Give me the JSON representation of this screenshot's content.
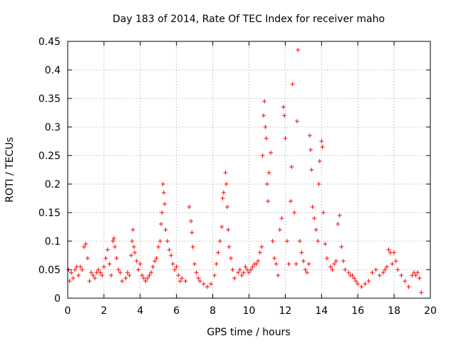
{
  "chart_data": {
    "type": "scatter",
    "title": "Day 183 of 2014, Rate Of TEC Index for receiver maho",
    "xlabel": "GPS time / hours",
    "ylabel": "ROTI / TECUs",
    "xlim": [
      0,
      20
    ],
    "ylim": [
      0,
      0.45
    ],
    "xticks": [
      0,
      2,
      4,
      6,
      8,
      10,
      12,
      14,
      16,
      18,
      20
    ],
    "yticks": [
      0,
      0.05,
      0.1,
      0.15,
      0.2,
      0.25,
      0.3,
      0.35,
      0.4,
      0.45
    ],
    "xtick_labels": [
      "0",
      "2",
      "4",
      "6",
      "8",
      "10",
      "12",
      "14",
      "16",
      "18",
      "20"
    ],
    "ytick_labels": [
      "0",
      "0.05",
      "0.1",
      "0.15",
      "0.2",
      "0.25",
      "0.3",
      "0.35",
      "0.4",
      "0.45"
    ],
    "grid": true,
    "marker": "+",
    "color": "#ff0000",
    "series": [
      {
        "name": "ROTI",
        "points": [
          [
            0.05,
            0.05
          ],
          [
            0.1,
            0.03
          ],
          [
            0.2,
            0.045
          ],
          [
            0.3,
            0.035
          ],
          [
            0.4,
            0.05
          ],
          [
            0.5,
            0.055
          ],
          [
            0.6,
            0.04
          ],
          [
            0.7,
            0.055
          ],
          [
            0.8,
            0.05
          ],
          [
            0.9,
            0.09
          ],
          [
            1.0,
            0.095
          ],
          [
            1.1,
            0.07
          ],
          [
            1.2,
            0.03
          ],
          [
            1.3,
            0.045
          ],
          [
            1.4,
            0.04
          ],
          [
            1.5,
            0.035
          ],
          [
            1.6,
            0.045
          ],
          [
            1.7,
            0.05
          ],
          [
            1.8,
            0.045
          ],
          [
            1.9,
            0.04
          ],
          [
            2.0,
            0.055
          ],
          [
            2.1,
            0.07
          ],
          [
            2.2,
            0.085
          ],
          [
            2.3,
            0.06
          ],
          [
            2.4,
            0.04
          ],
          [
            2.5,
            0.1
          ],
          [
            2.55,
            0.105
          ],
          [
            2.6,
            0.09
          ],
          [
            2.7,
            0.07
          ],
          [
            2.8,
            0.05
          ],
          [
            2.9,
            0.045
          ],
          [
            3.0,
            0.03
          ],
          [
            3.2,
            0.035
          ],
          [
            3.3,
            0.045
          ],
          [
            3.4,
            0.04
          ],
          [
            3.5,
            0.075
          ],
          [
            3.55,
            0.1
          ],
          [
            3.6,
            0.12
          ],
          [
            3.65,
            0.09
          ],
          [
            3.7,
            0.08
          ],
          [
            3.8,
            0.065
          ],
          [
            3.9,
            0.05
          ],
          [
            4.0,
            0.06
          ],
          [
            4.1,
            0.04
          ],
          [
            4.2,
            0.035
          ],
          [
            4.3,
            0.03
          ],
          [
            4.4,
            0.035
          ],
          [
            4.5,
            0.04
          ],
          [
            4.6,
            0.045
          ],
          [
            4.7,
            0.055
          ],
          [
            4.8,
            0.065
          ],
          [
            4.9,
            0.07
          ],
          [
            5.0,
            0.09
          ],
          [
            5.1,
            0.1
          ],
          [
            5.15,
            0.13
          ],
          [
            5.2,
            0.15
          ],
          [
            5.25,
            0.2
          ],
          [
            5.3,
            0.185
          ],
          [
            5.35,
            0.165
          ],
          [
            5.4,
            0.12
          ],
          [
            5.5,
            0.1
          ],
          [
            5.6,
            0.085
          ],
          [
            5.7,
            0.075
          ],
          [
            5.8,
            0.06
          ],
          [
            5.9,
            0.05
          ],
          [
            6.0,
            0.055
          ],
          [
            6.1,
            0.04
          ],
          [
            6.2,
            0.03
          ],
          [
            6.3,
            0.035
          ],
          [
            6.5,
            0.03
          ],
          [
            6.7,
            0.16
          ],
          [
            6.8,
            0.135
          ],
          [
            6.85,
            0.115
          ],
          [
            6.9,
            0.09
          ],
          [
            7.0,
            0.06
          ],
          [
            7.1,
            0.045
          ],
          [
            7.2,
            0.035
          ],
          [
            7.3,
            0.03
          ],
          [
            7.5,
            0.025
          ],
          [
            7.7,
            0.02
          ],
          [
            7.9,
            0.025
          ],
          [
            8.1,
            0.04
          ],
          [
            8.2,
            0.06
          ],
          [
            8.3,
            0.08
          ],
          [
            8.4,
            0.1
          ],
          [
            8.5,
            0.125
          ],
          [
            8.55,
            0.175
          ],
          [
            8.6,
            0.185
          ],
          [
            8.7,
            0.22
          ],
          [
            8.75,
            0.2
          ],
          [
            8.8,
            0.16
          ],
          [
            8.85,
            0.12
          ],
          [
            8.9,
            0.09
          ],
          [
            9.0,
            0.07
          ],
          [
            9.1,
            0.05
          ],
          [
            9.2,
            0.035
          ],
          [
            9.4,
            0.045
          ],
          [
            9.5,
            0.05
          ],
          [
            9.6,
            0.04
          ],
          [
            9.7,
            0.045
          ],
          [
            9.8,
            0.055
          ],
          [
            9.9,
            0.05
          ],
          [
            10.0,
            0.045
          ],
          [
            10.1,
            0.05
          ],
          [
            10.2,
            0.055
          ],
          [
            10.3,
            0.06
          ],
          [
            10.4,
            0.06
          ],
          [
            10.5,
            0.065
          ],
          [
            10.6,
            0.08
          ],
          [
            10.7,
            0.09
          ],
          [
            10.75,
            0.25
          ],
          [
            10.8,
            0.32
          ],
          [
            10.85,
            0.345
          ],
          [
            10.9,
            0.3
          ],
          [
            10.95,
            0.28
          ],
          [
            11.0,
            0.2
          ],
          [
            11.05,
            0.17
          ],
          [
            11.1,
            0.22
          ],
          [
            11.2,
            0.255
          ],
          [
            11.3,
            0.1
          ],
          [
            11.4,
            0.07
          ],
          [
            11.5,
            0.06
          ],
          [
            11.6,
            0.04
          ],
          [
            11.7,
            0.12
          ],
          [
            11.8,
            0.14
          ],
          [
            11.9,
            0.335
          ],
          [
            11.95,
            0.32
          ],
          [
            12.0,
            0.28
          ],
          [
            12.1,
            0.1
          ],
          [
            12.2,
            0.06
          ],
          [
            12.3,
            0.17
          ],
          [
            12.35,
            0.23
          ],
          [
            12.4,
            0.375
          ],
          [
            12.5,
            0.15
          ],
          [
            12.6,
            0.06
          ],
          [
            12.65,
            0.31
          ],
          [
            12.7,
            0.435
          ],
          [
            12.8,
            0.1
          ],
          [
            12.9,
            0.08
          ],
          [
            13.0,
            0.065
          ],
          [
            13.1,
            0.05
          ],
          [
            13.2,
            0.045
          ],
          [
            13.3,
            0.06
          ],
          [
            13.35,
            0.285
          ],
          [
            13.4,
            0.26
          ],
          [
            13.45,
            0.225
          ],
          [
            13.5,
            0.16
          ],
          [
            13.6,
            0.14
          ],
          [
            13.7,
            0.12
          ],
          [
            13.8,
            0.1
          ],
          [
            13.85,
            0.2
          ],
          [
            13.9,
            0.24
          ],
          [
            14.0,
            0.275
          ],
          [
            14.05,
            0.265
          ],
          [
            14.1,
            0.15
          ],
          [
            14.2,
            0.095
          ],
          [
            14.3,
            0.07
          ],
          [
            14.5,
            0.055
          ],
          [
            14.6,
            0.05
          ],
          [
            14.7,
            0.06
          ],
          [
            14.8,
            0.065
          ],
          [
            14.9,
            0.13
          ],
          [
            15.0,
            0.145
          ],
          [
            15.1,
            0.09
          ],
          [
            15.2,
            0.065
          ],
          [
            15.3,
            0.05
          ],
          [
            15.5,
            0.045
          ],
          [
            15.6,
            0.04
          ],
          [
            15.7,
            0.04
          ],
          [
            15.8,
            0.035
          ],
          [
            15.9,
            0.03
          ],
          [
            16.0,
            0.025
          ],
          [
            16.2,
            0.02
          ],
          [
            16.4,
            0.025
          ],
          [
            16.6,
            0.03
          ],
          [
            16.8,
            0.045
          ],
          [
            17.0,
            0.05
          ],
          [
            17.2,
            0.04
          ],
          [
            17.4,
            0.045
          ],
          [
            17.5,
            0.05
          ],
          [
            17.6,
            0.055
          ],
          [
            17.7,
            0.085
          ],
          [
            17.8,
            0.08
          ],
          [
            17.9,
            0.06
          ],
          [
            18.0,
            0.08
          ],
          [
            18.1,
            0.065
          ],
          [
            18.2,
            0.05
          ],
          [
            18.4,
            0.04
          ],
          [
            18.6,
            0.03
          ],
          [
            18.8,
            0.02
          ],
          [
            19.0,
            0.04
          ],
          [
            19.1,
            0.045
          ],
          [
            19.2,
            0.04
          ],
          [
            19.3,
            0.045
          ],
          [
            19.4,
            0.035
          ],
          [
            19.5,
            0.01
          ]
        ]
      }
    ]
  }
}
